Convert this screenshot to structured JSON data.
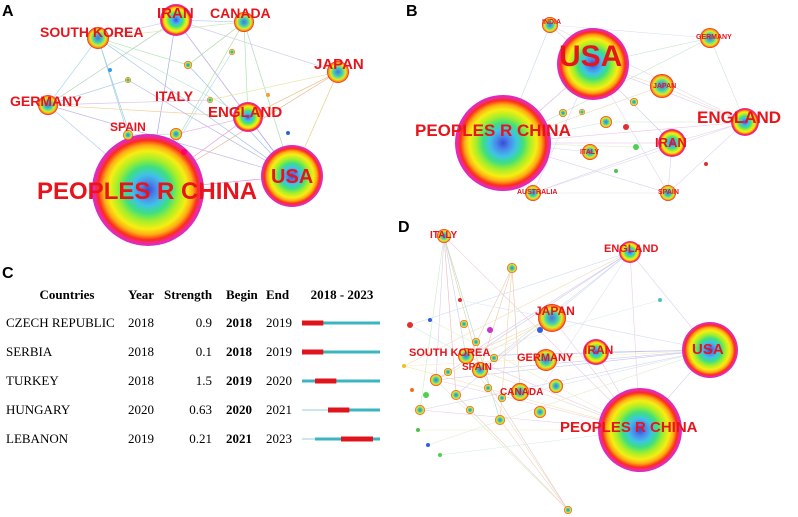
{
  "panels": {
    "a": {
      "letter": "A",
      "labels": {
        "south_korea": "SOUTH KOREA",
        "iran": "IRAN",
        "canada": "CANADA",
        "japan": "JAPAN",
        "germany": "GERMANY",
        "italy": "ITALY",
        "england": "ENGLAND",
        "spain": "SPAIN",
        "peoples_r_china": "PEOPLES R CHINA",
        "usa": "USA"
      }
    },
    "b": {
      "letter": "B",
      "labels": {
        "india": "INDIA",
        "usa": "USA",
        "germany": "GERMANY",
        "japan": "JAPAN",
        "england": "ENGLAND",
        "peoples_r_china": "PEOPLES R CHINA",
        "iran": "IRAN",
        "italy": "ITALY",
        "australia": "AUSTRALIA",
        "spain": "SPAIN"
      }
    },
    "c": {
      "letter": "C"
    },
    "d": {
      "letter": "D",
      "labels": {
        "italy": "ITALY",
        "england": "ENGLAND",
        "japan": "JAPAN",
        "south_korea": "SOUTH KOREA",
        "spain": "SPAIN",
        "germany": "GERMANY",
        "iran": "IRAN",
        "usa": "USA",
        "canada": "CANADA",
        "peoples_r_china": "PEOPLES R CHINA"
      }
    }
  },
  "burst_table": {
    "headers": {
      "countries": "Countries",
      "year": "Year",
      "strength": "Strength",
      "begin": "Begin",
      "end": "End",
      "range": "2018 - 2023"
    },
    "range_start": 2018,
    "range_end": 2023,
    "rows": [
      {
        "country": "CZECH REPUBLIC",
        "year": "2018",
        "strength": "0.9",
        "begin": "2018",
        "end": "2019"
      },
      {
        "country": "SERBIA",
        "year": "2018",
        "strength": "0.1",
        "begin": "2018",
        "end": "2019"
      },
      {
        "country": "TURKEY",
        "year": "2018",
        "strength": "1.5",
        "begin": "2019",
        "end": "2020"
      },
      {
        "country": "HUNGARY",
        "year": "2020",
        "strength": "0.63",
        "begin": "2020",
        "end": "2021"
      },
      {
        "country": "LEBANON",
        "year": "2019",
        "strength": "0.21",
        "begin": "2021",
        "end": "2023"
      }
    ]
  },
  "colors": {
    "label": "#e8141c",
    "burst": "#e0141c",
    "active": "#3bb5c0",
    "inactive": "#c8e8ec"
  }
}
